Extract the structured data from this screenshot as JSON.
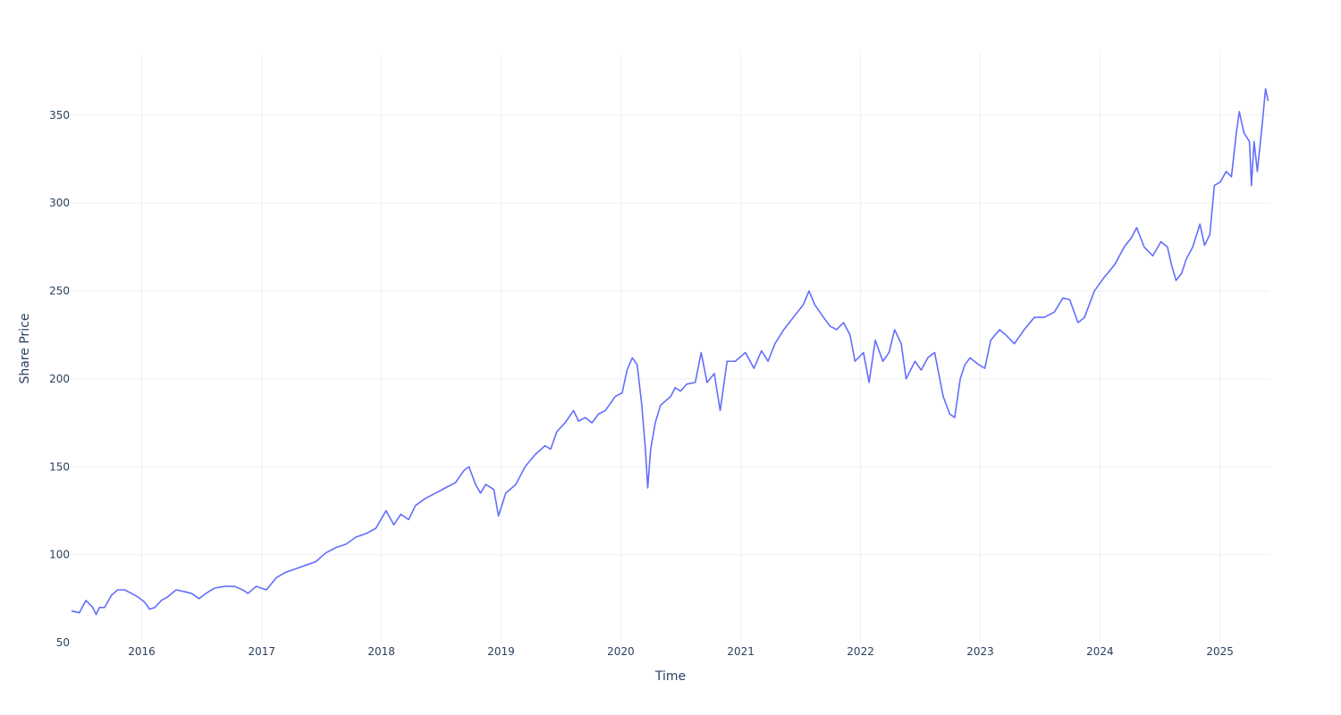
{
  "chart_data": {
    "type": "line",
    "title": "",
    "xlabel": "Time",
    "ylabel": "Share Price",
    "xlim": [
      "2015-06-01",
      "2025-06-01"
    ],
    "ylim": [
      50,
      385
    ],
    "grid": true,
    "line_color": "#636efa",
    "grid_color": "#ebf0f8",
    "text_color": "#2a3f5f",
    "x_ticks": [
      {
        "label": "2016",
        "date": "2016-01-01"
      },
      {
        "label": "2017",
        "date": "2017-01-01"
      },
      {
        "label": "2018",
        "date": "2018-01-01"
      },
      {
        "label": "2019",
        "date": "2019-01-01"
      },
      {
        "label": "2020",
        "date": "2020-01-01"
      },
      {
        "label": "2021",
        "date": "2021-01-01"
      },
      {
        "label": "2022",
        "date": "2022-01-01"
      },
      {
        "label": "2023",
        "date": "2023-01-01"
      },
      {
        "label": "2024",
        "date": "2024-01-01"
      },
      {
        "label": "2025",
        "date": "2025-01-01"
      }
    ],
    "y_ticks": [
      {
        "label": "50",
        "value": 50
      },
      {
        "label": "100",
        "value": 100
      },
      {
        "label": "150",
        "value": 150
      },
      {
        "label": "200",
        "value": 200
      },
      {
        "label": "250",
        "value": 250
      },
      {
        "label": "300",
        "value": 300
      },
      {
        "label": "350",
        "value": 350
      }
    ],
    "series": [
      {
        "x": [
          "2015-06-01",
          "2015-06-25",
          "2015-07-15",
          "2015-08-05",
          "2015-08-15",
          "2015-08-25",
          "2015-09-10",
          "2015-10-01",
          "2015-10-20",
          "2015-11-10",
          "2015-12-01",
          "2015-12-20",
          "2016-01-10",
          "2016-01-25",
          "2016-02-10",
          "2016-03-01",
          "2016-03-20",
          "2016-04-15",
          "2016-05-10",
          "2016-06-01",
          "2016-06-24",
          "2016-07-15",
          "2016-08-10",
          "2016-09-10",
          "2016-10-10",
          "2016-11-04",
          "2016-11-20",
          "2016-12-15",
          "2017-01-15",
          "2017-02-15",
          "2017-03-15",
          "2017-04-15",
          "2017-05-15",
          "2017-06-15",
          "2017-07-15",
          "2017-08-15",
          "2017-09-15",
          "2017-10-15",
          "2017-11-15",
          "2017-12-15",
          "2018-01-15",
          "2018-02-08",
          "2018-03-01",
          "2018-03-25",
          "2018-04-15",
          "2018-05-15",
          "2018-06-15",
          "2018-07-15",
          "2018-08-15",
          "2018-09-10",
          "2018-09-25",
          "2018-10-15",
          "2018-10-30",
          "2018-11-15",
          "2018-12-10",
          "2018-12-24",
          "2019-01-15",
          "2019-02-15",
          "2019-03-15",
          "2019-04-15",
          "2019-05-15",
          "2019-06-01",
          "2019-06-20",
          "2019-07-15",
          "2019-08-10",
          "2019-08-25",
          "2019-09-15",
          "2019-10-05",
          "2019-10-25",
          "2019-11-15",
          "2019-12-15",
          "2020-01-05",
          "2020-01-20",
          "2020-02-05",
          "2020-02-20",
          "2020-03-05",
          "2020-03-16",
          "2020-03-23",
          "2020-04-01",
          "2020-04-15",
          "2020-05-01",
          "2020-06-01",
          "2020-06-15",
          "2020-07-01",
          "2020-07-20",
          "2020-08-15",
          "2020-09-02",
          "2020-09-20",
          "2020-10-12",
          "2020-10-30",
          "2020-11-20",
          "2020-12-15",
          "2021-01-15",
          "2021-02-10",
          "2021-03-05",
          "2021-03-25",
          "2021-04-15",
          "2021-05-12",
          "2021-06-10",
          "2021-07-10",
          "2021-07-28",
          "2021-08-15",
          "2021-09-10",
          "2021-09-30",
          "2021-10-20",
          "2021-11-10",
          "2021-11-30",
          "2021-12-15",
          "2022-01-10",
          "2022-01-27",
          "2022-02-15",
          "2022-03-10",
          "2022-03-29",
          "2022-04-15",
          "2022-05-05",
          "2022-05-20",
          "2022-06-16",
          "2022-07-05",
          "2022-07-25",
          "2022-08-15",
          "2022-09-10",
          "2022-09-30",
          "2022-10-15",
          "2022-11-01",
          "2022-11-15",
          "2022-12-01",
          "2022-12-28",
          "2023-01-15",
          "2023-02-02",
          "2023-03-01",
          "2023-03-20",
          "2023-04-15",
          "2023-05-15",
          "2023-06-15",
          "2023-07-15",
          "2023-08-15",
          "2023-09-10",
          "2023-10-01",
          "2023-10-26",
          "2023-11-15",
          "2023-12-15",
          "2024-01-15",
          "2024-02-15",
          "2024-03-15",
          "2024-04-05",
          "2024-04-22",
          "2024-05-15",
          "2024-06-10",
          "2024-07-05",
          "2024-07-25",
          "2024-08-06",
          "2024-08-20",
          "2024-09-06",
          "2024-09-20",
          "2024-10-10",
          "2024-11-01",
          "2024-11-15",
          "2024-12-01",
          "2024-12-15",
          "2025-01-02",
          "2025-01-20",
          "2025-02-05",
          "2025-02-20",
          "2025-03-01",
          "2025-03-15",
          "2025-04-01",
          "2025-04-07",
          "2025-04-15",
          "2025-04-25",
          "2025-05-10",
          "2025-05-20",
          "2025-05-28"
        ],
        "y": [
          68,
          67,
          74,
          70,
          66,
          70,
          70,
          77,
          80,
          80,
          78,
          76,
          73,
          69,
          70,
          74,
          76,
          80,
          79,
          78,
          75,
          78,
          81,
          82,
          82,
          80,
          78,
          82,
          80,
          87,
          90,
          92,
          94,
          96,
          101,
          104,
          106,
          110,
          112,
          115,
          125,
          117,
          123,
          120,
          128,
          132,
          135,
          138,
          141,
          148,
          150,
          140,
          135,
          140,
          137,
          122,
          135,
          140,
          150,
          157,
          162,
          160,
          170,
          175,
          182,
          176,
          178,
          175,
          180,
          182,
          190,
          192,
          205,
          212,
          208,
          185,
          160,
          138,
          160,
          175,
          185,
          190,
          195,
          193,
          197,
          198,
          215,
          198,
          203,
          182,
          210,
          210,
          215,
          206,
          216,
          210,
          220,
          228,
          235,
          242,
          250,
          242,
          235,
          230,
          228,
          232,
          225,
          210,
          215,
          198,
          222,
          210,
          215,
          228,
          220,
          200,
          210,
          205,
          212,
          215,
          190,
          180,
          178,
          200,
          208,
          212,
          208,
          206,
          222,
          228,
          225,
          220,
          228,
          235,
          235,
          238,
          246,
          245,
          232,
          235,
          250,
          258,
          265,
          275,
          280,
          286,
          275,
          270,
          278,
          275,
          265,
          256,
          260,
          268,
          275,
          288,
          276,
          282,
          310,
          312,
          318,
          315,
          340,
          352,
          340,
          335,
          310,
          335,
          318,
          345,
          365,
          358
        ]
      }
    ]
  }
}
